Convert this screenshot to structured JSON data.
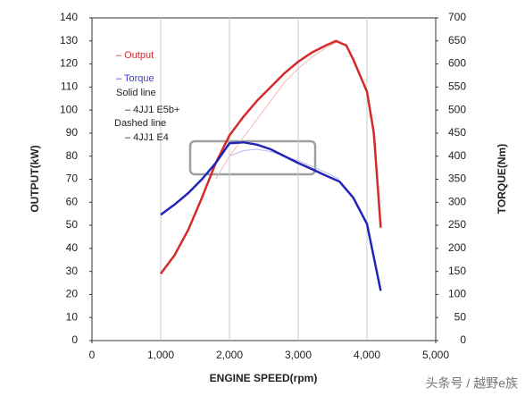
{
  "chart_data": {
    "type": "line",
    "xlabel": "ENGINE SPEED(rpm)",
    "ylabel": "OUTPUT(kW)",
    "y2label": "TORQUE(Nm)",
    "xlim": [
      0,
      5000
    ],
    "xticks": [
      0,
      {
        "value": 1000,
        "label": "1,000"
      },
      {
        "value": 2000,
        "label": "2,000"
      },
      {
        "value": 3000,
        "label": "3,000"
      },
      {
        "value": 4000,
        "label": "4,000"
      },
      {
        "value": 5000,
        "label": "5,000"
      }
    ],
    "ylim": [
      0,
      140
    ],
    "yticks": [
      0,
      10,
      20,
      30,
      40,
      50,
      60,
      70,
      80,
      90,
      100,
      110,
      120,
      130,
      140
    ],
    "y2lim": [
      0,
      700
    ],
    "y2ticks": [
      0,
      50,
      100,
      150,
      200,
      250,
      300,
      350,
      400,
      450,
      500,
      550,
      600,
      650,
      700
    ],
    "grid": true,
    "series": [
      {
        "color": "#f2b8b8",
        "x": [
          1800,
          2000,
          2200,
          2400,
          2600,
          2800,
          3000,
          3200,
          3400,
          3600
        ],
        "values": [
          70,
          80,
          88,
          96,
          104,
          112,
          118,
          123,
          127,
          130
        ]
      },
      {
        "color": "#b8b8f0",
        "axis": "y2",
        "x": [
          2000,
          2200,
          2400,
          2600,
          2800,
          3000,
          3200,
          3400,
          3600
        ],
        "values": [
          400,
          412,
          415,
          410,
          400,
          390,
          378,
          365,
          350
        ]
      },
      {
        "color": "#d42a2a",
        "x": [
          1000,
          1200,
          1400,
          1600,
          1800,
          2000,
          2200,
          2400,
          2600,
          2800,
          3000,
          3200,
          3400,
          3550,
          3700,
          3800,
          3900,
          4000,
          4100,
          4200
        ],
        "values": [
          29,
          37,
          48,
          62,
          77,
          89,
          97,
          104,
          110,
          116,
          121,
          125,
          128,
          130,
          128,
          122,
          115,
          108,
          90,
          49
        ]
      },
      {
        "color": "#2323b8",
        "axis": "y2",
        "x": [
          1000,
          1200,
          1400,
          1600,
          1800,
          2000,
          2200,
          2400,
          2600,
          2800,
          3000,
          3200,
          3400,
          3600,
          3800,
          4000,
          4200
        ],
        "values": [
          273,
          295,
          320,
          350,
          385,
          428,
          430,
          425,
          415,
          400,
          385,
          372,
          358,
          345,
          310,
          253,
          108
        ]
      }
    ],
    "annotations": [
      {
        "text": "– Output",
        "color": "#d42a2a"
      },
      {
        "text": "– Torque",
        "color": "#3a3ad0"
      },
      {
        "text": "Solid line",
        "color": "#222222"
      },
      {
        "text": "– 4JJ1 E5b+",
        "color": "#222222"
      },
      {
        "text": "Dashed line",
        "color": "#222222"
      },
      {
        "text": "– 4JJ1 E4",
        "color": "#222222"
      }
    ],
    "watermark": "头条号 / 越野e族"
  }
}
